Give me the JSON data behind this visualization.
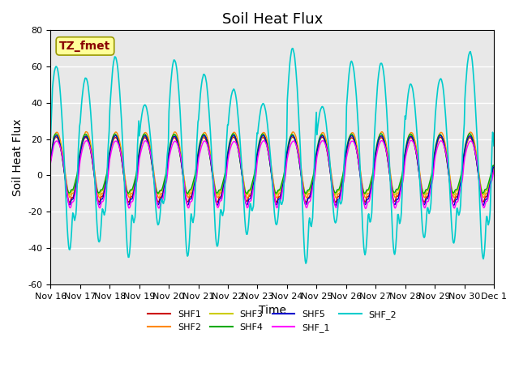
{
  "title": "Soil Heat Flux",
  "ylabel": "Soil Heat Flux",
  "xlabel": "Time",
  "ylim": [
    -60,
    80
  ],
  "yticks": [
    -60,
    -40,
    -20,
    0,
    20,
    40,
    60,
    80
  ],
  "n_days": 15,
  "xtick_labels": [
    "Nov 16",
    "Nov 17",
    "Nov 18",
    "Nov 19",
    "Nov 20",
    "Nov 21",
    "Nov 22",
    "Nov 23",
    "Nov 24",
    "Nov 25",
    "Nov 26",
    "Nov 27",
    "Nov 28",
    "Nov 29",
    "Nov 30",
    "Dec 1"
  ],
  "series_colors": {
    "SHF1": "#cc0000",
    "SHF2": "#ff8800",
    "SHF3": "#cccc00",
    "SHF4": "#00aa00",
    "SHF5": "#0000cc",
    "SHF_1": "#ff00ff",
    "SHF_2": "#00cccc"
  },
  "annotation_text": "TZ_fmet",
  "annotation_bg": "#ffff99",
  "annotation_fg": "#880000",
  "background_color": "#e8e8e8",
  "grid_color": "#ffffff",
  "title_fontsize": 13,
  "label_fontsize": 10,
  "tick_fontsize": 8
}
